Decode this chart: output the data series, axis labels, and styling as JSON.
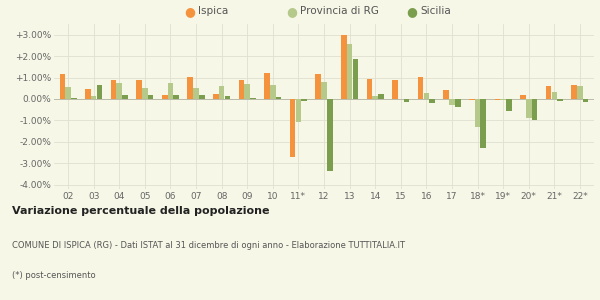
{
  "years": [
    "02",
    "03",
    "04",
    "05",
    "06",
    "07",
    "08",
    "09",
    "10",
    "11*",
    "12",
    "13",
    "14",
    "15",
    "16",
    "17",
    "18*",
    "19*",
    "20*",
    "21*",
    "22*"
  ],
  "ispica": [
    1.15,
    0.45,
    0.9,
    0.9,
    0.2,
    1.05,
    0.25,
    0.9,
    1.2,
    -2.7,
    1.15,
    3.0,
    0.95,
    0.9,
    1.05,
    0.4,
    -0.05,
    -0.05,
    0.2,
    0.6,
    0.65
  ],
  "provincia_rg": [
    0.55,
    0.15,
    0.75,
    0.5,
    0.75,
    0.5,
    0.6,
    0.7,
    0.65,
    -1.05,
    0.8,
    2.55,
    0.15,
    0.0,
    0.3,
    -0.3,
    -1.3,
    -0.05,
    -0.9,
    0.35,
    0.6
  ],
  "sicilia": [
    0.05,
    0.65,
    0.2,
    0.2,
    0.2,
    0.2,
    0.15,
    0.05,
    0.1,
    -0.1,
    -3.35,
    1.85,
    0.25,
    -0.15,
    -0.2,
    -0.35,
    -2.3,
    -0.55,
    -1.0,
    -0.1,
    -0.15
  ],
  "color_ispica": "#f5923e",
  "color_provincia": "#b5c98a",
  "color_sicilia": "#7a9e4e",
  "ylim": [
    -4.2,
    3.5
  ],
  "yticks": [
    -4.0,
    -3.0,
    -2.0,
    -1.0,
    0.0,
    1.0,
    2.0,
    3.0
  ],
  "title": "Variazione percentuale della popolazione",
  "subtitle1": "COMUNE DI ISPICA (RG) - Dati ISTAT al 31 dicembre di ogni anno - Elaborazione TUTTITALIA.IT",
  "subtitle2": "(*) post-censimento",
  "legend_labels": [
    "Ispica",
    "Provincia di RG",
    "Sicilia"
  ],
  "bg_color": "#f7f7e8",
  "grid_color": "#e0e0d0"
}
